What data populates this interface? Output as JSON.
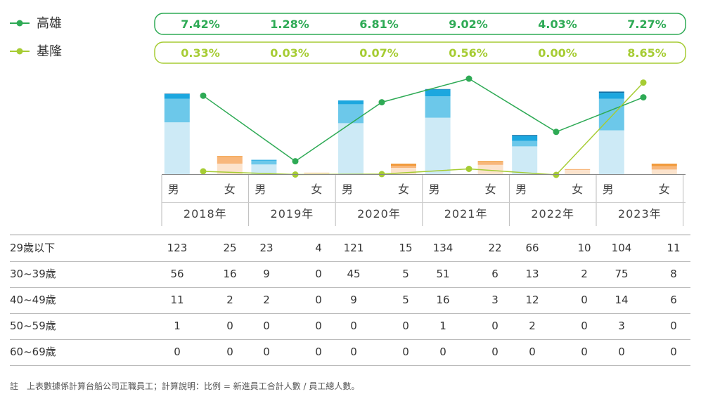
{
  "chart_data": {
    "type": "bar",
    "years": [
      "2018年",
      "2019年",
      "2020年",
      "2021年",
      "2022年",
      "2023年"
    ],
    "genders": [
      "男",
      "女"
    ],
    "age_groups": [
      "29歲以下",
      "30~39歲",
      "40~49歲",
      "50~59歲",
      "60~69歲"
    ],
    "table": [
      [
        123,
        25,
        23,
        4,
        121,
        15,
        134,
        22,
        66,
        10,
        104,
        11
      ],
      [
        56,
        16,
        9,
        0,
        45,
        5,
        51,
        6,
        13,
        2,
        75,
        8
      ],
      [
        11,
        2,
        2,
        0,
        9,
        5,
        16,
        3,
        12,
        0,
        14,
        6
      ],
      [
        1,
        0,
        0,
        0,
        0,
        0,
        1,
        0,
        2,
        0,
        3,
        0
      ],
      [
        0,
        0,
        0,
        0,
        0,
        0,
        0,
        0,
        0,
        0,
        0,
        0
      ]
    ],
    "lines": [
      {
        "name": "高雄",
        "color": "#2eaa55",
        "labels": [
          "7.42%",
          "1.28%",
          "6.81%",
          "9.02%",
          "4.03%",
          "7.27%"
        ],
        "values": [
          7.42,
          1.28,
          6.81,
          9.02,
          4.03,
          7.27
        ]
      },
      {
        "name": "基隆",
        "color": "#a6cc33",
        "labels": [
          "0.33%",
          "0.03%",
          "0.07%",
          "0.56%",
          "0.00%",
          "8.65%"
        ],
        "values": [
          0.33,
          0.03,
          0.07,
          0.56,
          0.0,
          8.65
        ]
      }
    ],
    "male_colors": [
      "#cdeaf6",
      "#6cc8ea",
      "#1ca7df",
      "#0f6da3",
      "#0a4f7a"
    ],
    "female_colors": [
      "#fce3cc",
      "#f8b77b",
      "#f19b3d",
      "#d97a1f",
      "#b35f12"
    ]
  },
  "note": "註　上表數據係計算台船公司正職員工；計算說明：比例 = 新進員工合計人數 / 員工總人數。"
}
